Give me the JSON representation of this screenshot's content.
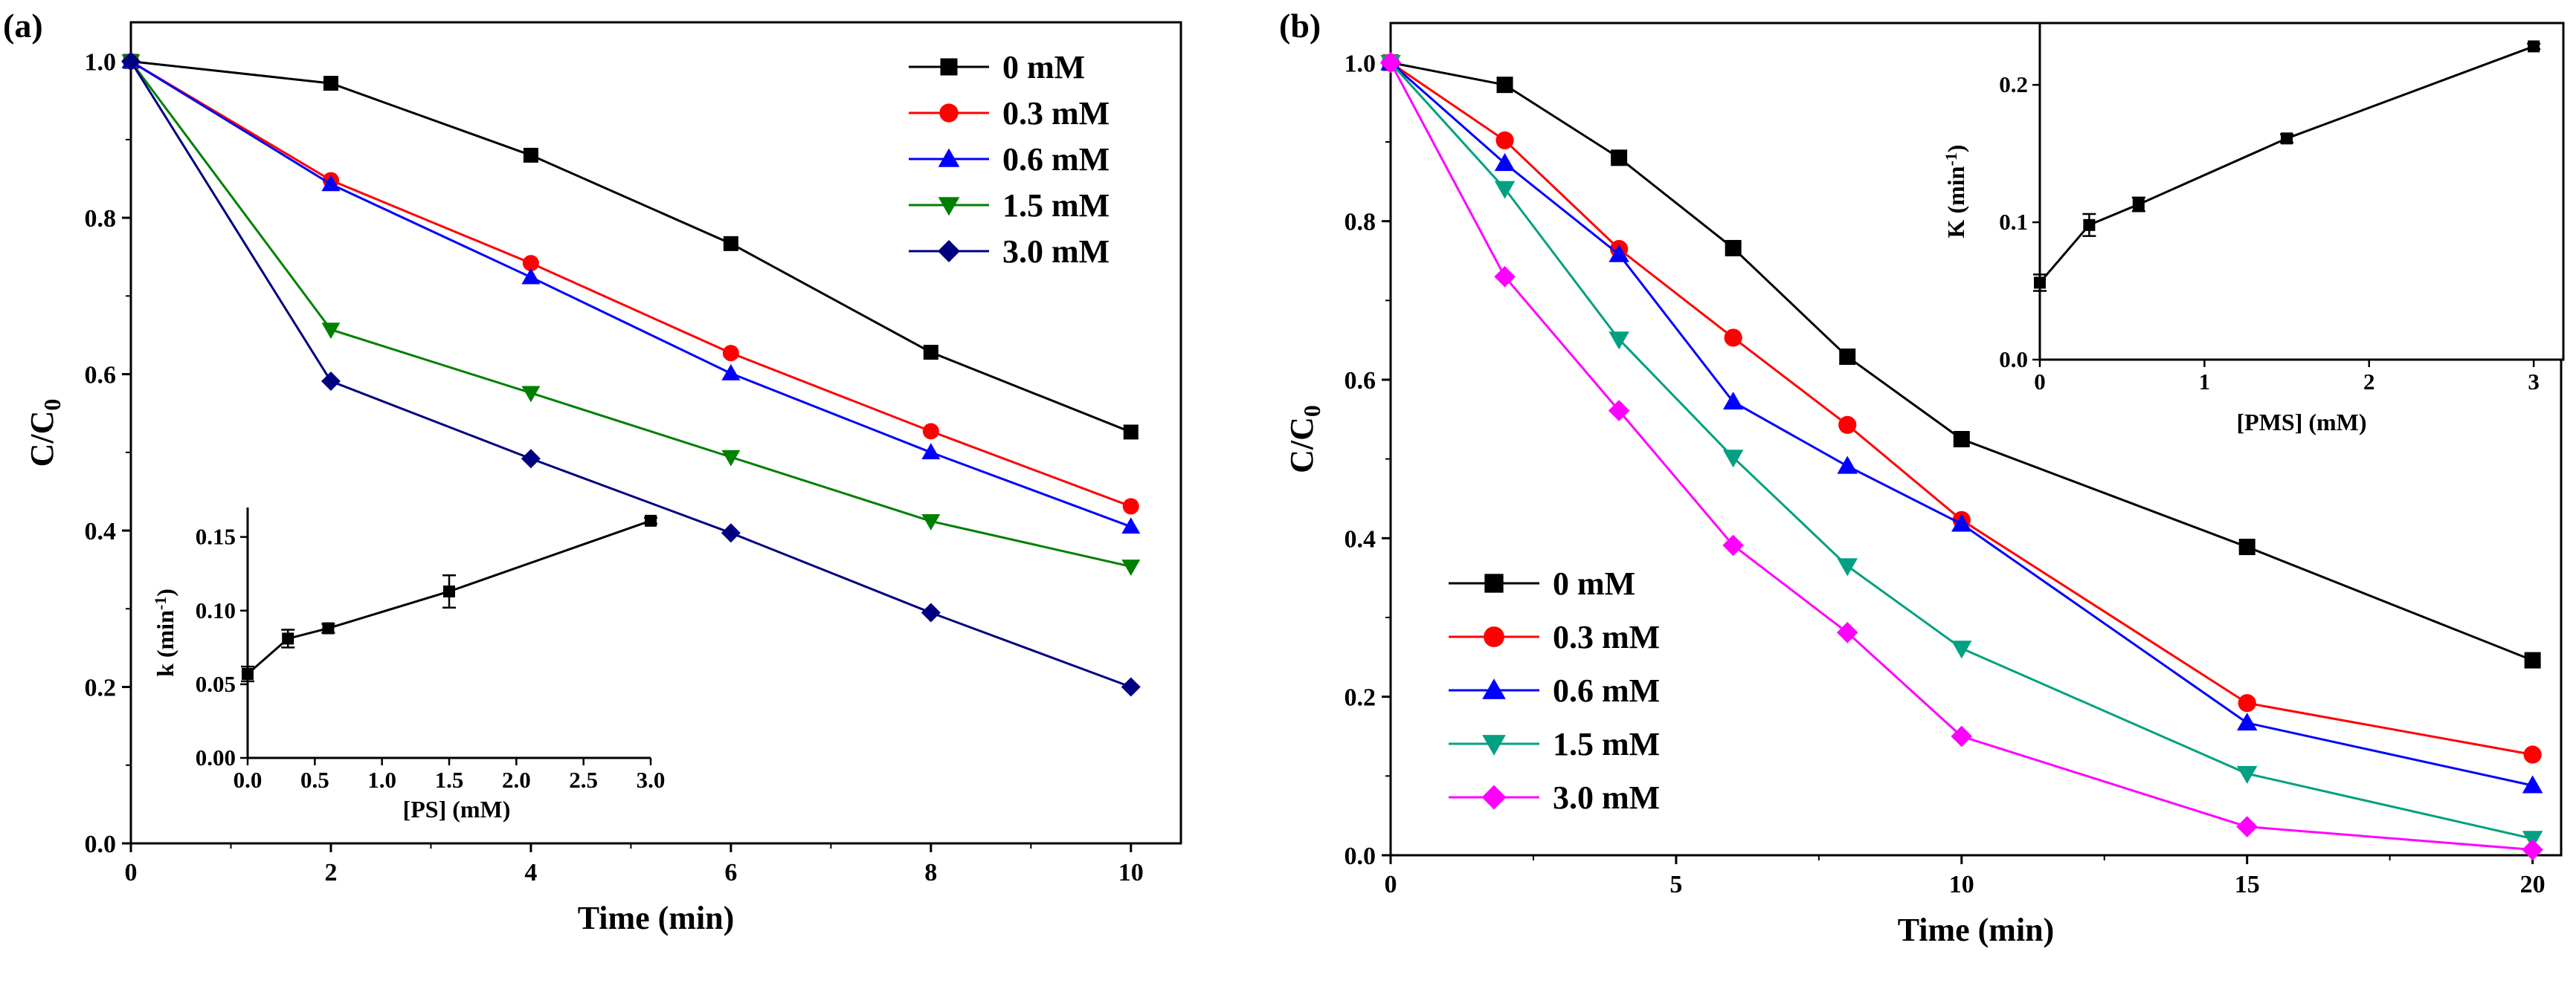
{
  "figure": {
    "panel_a_label": "(a)",
    "panel_b_label": "(b)"
  },
  "chart_data": [
    {
      "id": "a",
      "type": "line",
      "xlabel": "Time (min)",
      "ylabel": "C/C",
      "ylabel_sub": "0",
      "xlim": [
        0,
        10.5
      ],
      "ylim": [
        0,
        1.05
      ],
      "xticks": [
        0,
        2,
        4,
        6,
        8,
        10
      ],
      "yticks": [
        0.0,
        0.2,
        0.4,
        0.6,
        0.8,
        1.0
      ],
      "legend_position": "top-right",
      "x": [
        0,
        2,
        4,
        6,
        8,
        10
      ],
      "series": [
        {
          "name": "0 mM",
          "color": "#000000",
          "marker": "square",
          "values": [
            1.0,
            0.972,
            0.88,
            0.767,
            0.628,
            0.526
          ]
        },
        {
          "name": "0.3 mM",
          "color": "#ff0000",
          "marker": "circle",
          "values": [
            1.0,
            0.848,
            0.742,
            0.627,
            0.527,
            0.431
          ]
        },
        {
          "name": "0.6 mM",
          "color": "#0000ff",
          "marker": "triangle-up",
          "values": [
            1.0,
            0.843,
            0.724,
            0.601,
            0.5,
            0.405
          ]
        },
        {
          "name": "1.5 mM",
          "color": "#008000",
          "marker": "triangle-down",
          "values": [
            1.0,
            0.657,
            0.576,
            0.494,
            0.412,
            0.354
          ]
        },
        {
          "name": "3.0 mM",
          "color": "#000080",
          "marker": "diamond",
          "values": [
            1.0,
            0.591,
            0.492,
            0.397,
            0.295,
            0.2
          ]
        }
      ],
      "inset": {
        "type": "line",
        "xlabel": "[PS] (mM)",
        "ylabel": "k (min",
        "ylabel_sup": "-1",
        "ylabel_end": ")",
        "xlim": [
          0,
          3.0
        ],
        "ylim": [
          0,
          0.17
        ],
        "xticks": [
          "0.0",
          "0.5",
          "1.0",
          "1.5",
          "2.0",
          "2.5",
          "3.0"
        ],
        "yticks": [
          "0.00",
          "0.05",
          "0.10",
          "0.15"
        ],
        "x": [
          0,
          0.3,
          0.6,
          1.5,
          3.0
        ],
        "y": [
          0.057,
          0.081,
          0.088,
          0.113,
          0.161
        ],
        "err": [
          0.005,
          0.006,
          0.003,
          0.011,
          0.002
        ],
        "color": "#000000"
      }
    },
    {
      "id": "b",
      "type": "line",
      "xlabel": "Time (min)",
      "ylabel": "C/C",
      "ylabel_sub": "0",
      "xlim": [
        0,
        20.5
      ],
      "ylim": [
        0,
        1.05
      ],
      "xticks": [
        0,
        5,
        10,
        15,
        20
      ],
      "yticks": [
        0.0,
        0.2,
        0.4,
        0.6,
        0.8,
        1.0
      ],
      "legend_position": "bottom-left",
      "x": [
        0,
        2,
        4,
        6,
        8,
        10,
        15,
        20
      ],
      "series": [
        {
          "name": "0 mM",
          "color": "#000000",
          "marker": "square",
          "values": [
            1.0,
            0.972,
            0.88,
            0.766,
            0.629,
            0.525,
            0.389,
            0.246
          ]
        },
        {
          "name": "0.3 mM",
          "color": "#ff0000",
          "marker": "circle",
          "values": [
            1.0,
            0.902,
            0.765,
            0.653,
            0.543,
            0.423,
            0.192,
            0.127
          ]
        },
        {
          "name": "0.6 mM",
          "color": "#0000ff",
          "marker": "triangle-up",
          "values": [
            1.0,
            0.873,
            0.758,
            0.572,
            0.491,
            0.418,
            0.167,
            0.088
          ]
        },
        {
          "name": "1.5 mM",
          "color": "#00a080",
          "marker": "triangle-down",
          "values": [
            1.0,
            0.841,
            0.651,
            0.502,
            0.365,
            0.261,
            0.103,
            0.021
          ]
        },
        {
          "name": "3.0  mM",
          "color": "#ff00ff",
          "marker": "diamond",
          "values": [
            1.0,
            0.73,
            0.561,
            0.391,
            0.281,
            0.15,
            0.036,
            0.007
          ]
        }
      ],
      "inset": {
        "type": "line",
        "xlabel": "[PMS] (mM)",
        "ylabel": "K (min",
        "ylabel_sup": "-1",
        "ylabel_end": ")",
        "xlim": [
          0,
          3.18
        ],
        "ylim": [
          0,
          0.245
        ],
        "xticks": [
          "0",
          "1",
          "2",
          "3"
        ],
        "yticks": [
          "0.0",
          "0.1",
          "0.2"
        ],
        "x": [
          0,
          0.3,
          0.6,
          1.5,
          3.0
        ],
        "y": [
          0.056,
          0.098,
          0.113,
          0.161,
          0.228
        ],
        "err": [
          0.006,
          0.008,
          0.005,
          0.003,
          0.002
        ],
        "color": "#000000"
      }
    }
  ]
}
